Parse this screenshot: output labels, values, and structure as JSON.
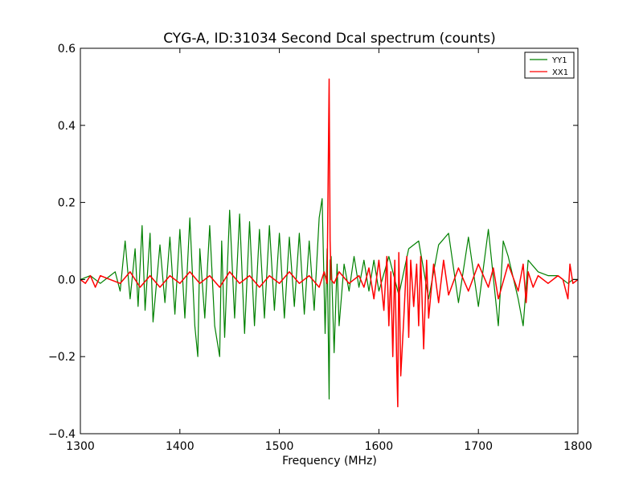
{
  "chart_data": {
    "type": "line",
    "title": "CYG-A, ID:31034 Second Dcal spectrum (counts)",
    "xlabel": "Frequency (MHz)",
    "ylabel": "",
    "xlim": [
      1300,
      1800
    ],
    "ylim": [
      -0.4,
      0.6
    ],
    "xticks": [
      1300,
      1400,
      1500,
      1600,
      1700,
      1800
    ],
    "xtick_labels": [
      "1300",
      "1400",
      "1500",
      "1600",
      "1700",
      "1800"
    ],
    "yticks": [
      -0.4,
      -0.2,
      0.0,
      0.2,
      0.4,
      0.6
    ],
    "ytick_labels": [
      "−0.4",
      "−0.2",
      "0.0",
      "0.2",
      "0.4",
      "0.6"
    ],
    "grid": false,
    "legend_position": "top-right",
    "series": [
      {
        "name": "YY1",
        "color": "#008000",
        "x": [
          1300,
          1310,
          1320,
          1330,
          1335,
          1340,
          1343,
          1345,
          1350,
          1355,
          1358,
          1362,
          1365,
          1370,
          1373,
          1380,
          1385,
          1390,
          1395,
          1400,
          1405,
          1410,
          1415,
          1418,
          1420,
          1425,
          1430,
          1435,
          1440,
          1442,
          1445,
          1450,
          1455,
          1460,
          1465,
          1470,
          1475,
          1480,
          1485,
          1490,
          1495,
          1500,
          1505,
          1510,
          1515,
          1520,
          1525,
          1530,
          1535,
          1540,
          1543,
          1546,
          1548,
          1550,
          1551,
          1552,
          1555,
          1558,
          1560,
          1565,
          1570,
          1575,
          1580,
          1585,
          1590,
          1595,
          1600,
          1610,
          1620,
          1630,
          1640,
          1650,
          1660,
          1670,
          1680,
          1690,
          1700,
          1710,
          1720,
          1725,
          1730,
          1740,
          1745,
          1750,
          1760,
          1770,
          1780,
          1790,
          1795,
          1800
        ],
        "y": [
          0.0,
          0.01,
          -0.01,
          0.01,
          0.02,
          -0.03,
          0.05,
          0.1,
          -0.05,
          0.08,
          -0.07,
          0.14,
          -0.08,
          0.12,
          -0.11,
          0.09,
          -0.06,
          0.11,
          -0.09,
          0.13,
          -0.1,
          0.16,
          -0.12,
          -0.2,
          0.08,
          -0.1,
          0.14,
          -0.12,
          -0.2,
          0.1,
          -0.15,
          0.18,
          -0.1,
          0.17,
          -0.14,
          0.15,
          -0.12,
          0.13,
          -0.1,
          0.14,
          -0.08,
          0.12,
          -0.1,
          0.11,
          -0.07,
          0.12,
          -0.09,
          0.1,
          -0.08,
          0.16,
          0.21,
          -0.14,
          0.08,
          -0.31,
          0.05,
          0.06,
          -0.19,
          0.04,
          -0.12,
          0.04,
          -0.03,
          0.06,
          -0.02,
          0.05,
          -0.03,
          0.05,
          -0.03,
          0.06,
          -0.04,
          0.08,
          0.1,
          -0.05,
          0.09,
          0.12,
          -0.06,
          0.11,
          -0.07,
          0.13,
          -0.12,
          0.1,
          0.06,
          -0.05,
          -0.12,
          0.05,
          0.02,
          0.01,
          0.01,
          -0.01,
          0.0,
          0.0
        ]
      },
      {
        "name": "XX1",
        "color": "#ff0000",
        "x": [
          1300,
          1305,
          1310,
          1315,
          1320,
          1330,
          1340,
          1350,
          1360,
          1370,
          1380,
          1390,
          1400,
          1410,
          1420,
          1430,
          1440,
          1450,
          1460,
          1470,
          1480,
          1490,
          1500,
          1510,
          1520,
          1530,
          1540,
          1545,
          1548,
          1550,
          1551,
          1552,
          1555,
          1560,
          1570,
          1580,
          1585,
          1590,
          1595,
          1600,
          1605,
          1608,
          1610,
          1612,
          1614,
          1616,
          1618,
          1619,
          1620,
          1622,
          1625,
          1628,
          1630,
          1632,
          1635,
          1638,
          1640,
          1642,
          1645,
          1648,
          1650,
          1655,
          1660,
          1665,
          1670,
          1680,
          1690,
          1700,
          1710,
          1715,
          1720,
          1730,
          1740,
          1745,
          1748,
          1750,
          1755,
          1760,
          1770,
          1780,
          1785,
          1790,
          1792,
          1795,
          1800
        ],
        "y": [
          0.0,
          -0.01,
          0.01,
          -0.02,
          0.01,
          0.0,
          -0.01,
          0.02,
          -0.02,
          0.01,
          -0.02,
          0.01,
          -0.01,
          0.02,
          -0.01,
          0.01,
          -0.02,
          0.02,
          -0.01,
          0.01,
          -0.02,
          0.01,
          -0.01,
          0.02,
          -0.01,
          0.01,
          -0.02,
          0.02,
          -0.01,
          0.52,
          0.1,
          0.0,
          -0.01,
          0.02,
          -0.01,
          0.01,
          -0.02,
          0.03,
          -0.05,
          0.05,
          -0.08,
          0.06,
          -0.12,
          0.02,
          -0.2,
          0.05,
          -0.23,
          -0.33,
          0.07,
          -0.25,
          -0.1,
          0.06,
          -0.15,
          0.05,
          -0.07,
          0.04,
          -0.12,
          0.06,
          -0.18,
          0.05,
          -0.1,
          0.04,
          -0.06,
          0.05,
          -0.04,
          0.03,
          -0.03,
          0.04,
          -0.02,
          0.03,
          -0.05,
          0.04,
          -0.03,
          0.04,
          -0.06,
          0.02,
          -0.02,
          0.01,
          -0.01,
          0.01,
          0.0,
          -0.05,
          0.04,
          -0.01,
          0.0
        ]
      }
    ]
  }
}
